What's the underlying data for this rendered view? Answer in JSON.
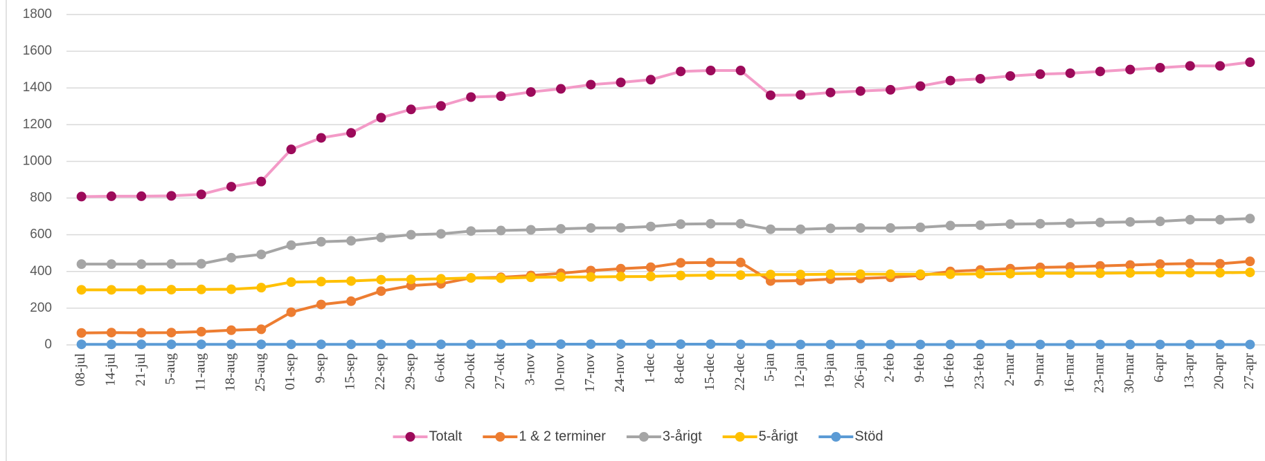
{
  "chart_data": {
    "type": "line",
    "categories": [
      "08-jul",
      "14-jul",
      "21-jul",
      "5-aug",
      "11-aug",
      "18-aug",
      "25-aug",
      "01-sep",
      "9-sep",
      "15-sep",
      "22-sep",
      "29-sep",
      "6-okt",
      "20-okt",
      "27-okt",
      "3-nov",
      "10-nov",
      "17-nov",
      "24-nov",
      "1-dec",
      "8-dec",
      "15-dec",
      "22-dec",
      "5-jan",
      "12-jan",
      "19-jan",
      "26-jan",
      "2-feb",
      "9-feb",
      "16-feb",
      "23-feb",
      "2-mar",
      "9-mar",
      "16-mar",
      "23-mar",
      "30-mar",
      "6-apr",
      "13-apr",
      "20-apr",
      "27-apr"
    ],
    "series": [
      {
        "name": "Totalt",
        "color": "#f39ac7",
        "marker_color": "#9c0a5a",
        "values": [
          808,
          810,
          810,
          812,
          820,
          862,
          890,
          1065,
          1128,
          1155,
          1238,
          1283,
          1302,
          1350,
          1355,
          1378,
          1395,
          1418,
          1430,
          1445,
          1490,
          1495,
          1495,
          1360,
          1362,
          1375,
          1383,
          1390,
          1410,
          1440,
          1450,
          1465,
          1475,
          1480,
          1490,
          1500,
          1510,
          1520,
          1520,
          1540
        ]
      },
      {
        "name": "1 & 2 terminer",
        "color": "#ed7d31",
        "values": [
          65,
          67,
          66,
          67,
          72,
          80,
          85,
          178,
          220,
          238,
          293,
          323,
          333,
          365,
          368,
          378,
          390,
          405,
          415,
          423,
          447,
          449,
          449,
          348,
          350,
          358,
          362,
          368,
          378,
          400,
          408,
          415,
          422,
          425,
          430,
          435,
          440,
          443,
          442,
          455
        ]
      },
      {
        "name": "3-årigt",
        "color": "#a5a5a5",
        "values": [
          440,
          440,
          440,
          441,
          442,
          475,
          493,
          543,
          562,
          567,
          585,
          600,
          605,
          620,
          623,
          627,
          632,
          637,
          638,
          645,
          658,
          660,
          660,
          630,
          630,
          635,
          637,
          637,
          640,
          650,
          652,
          658,
          660,
          663,
          667,
          670,
          673,
          682,
          682,
          688
        ]
      },
      {
        "name": "5-årigt",
        "color": "#ffc000",
        "values": [
          300,
          300,
          300,
          301,
          302,
          303,
          312,
          342,
          345,
          348,
          355,
          357,
          360,
          365,
          363,
          368,
          370,
          370,
          372,
          373,
          378,
          380,
          380,
          383,
          383,
          385,
          385,
          385,
          385,
          385,
          387,
          388,
          390,
          390,
          390,
          392,
          393,
          393,
          393,
          395
        ]
      },
      {
        "name": "Stöd",
        "color": "#5b9bd5",
        "values": [
          3,
          3,
          3,
          3,
          3,
          3,
          3,
          3,
          3,
          3,
          3,
          3,
          3,
          3,
          3,
          4,
          4,
          4,
          4,
          4,
          4,
          4,
          3,
          2,
          2,
          2,
          2,
          2,
          2,
          2,
          2,
          2,
          2,
          2,
          2,
          2,
          2,
          2,
          2,
          2
        ]
      }
    ],
    "ylim": [
      0,
      1800
    ],
    "yticks": [
      0,
      200,
      400,
      600,
      800,
      1000,
      1200,
      1400,
      1600,
      1800
    ],
    "grid": true,
    "legend": "bottom"
  }
}
